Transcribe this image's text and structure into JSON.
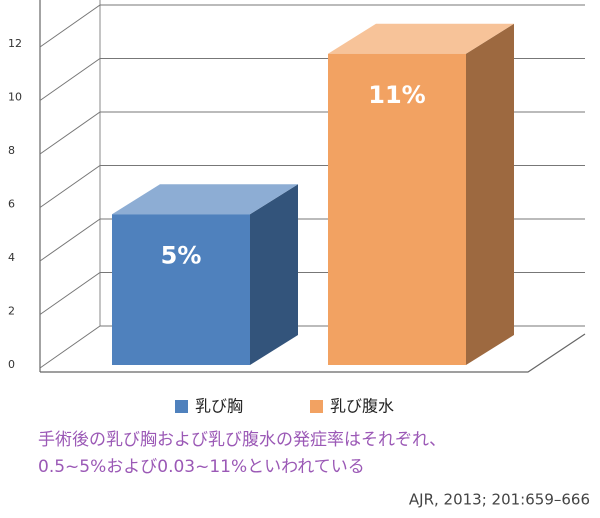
{
  "chart_data": {
    "type": "bar3d",
    "categories": [
      "乳び胸",
      "乳び腹水"
    ],
    "values": [
      5,
      11
    ],
    "value_labels": [
      "5%",
      "11%"
    ],
    "colors": [
      "#4f81bd",
      "#f2a262"
    ],
    "ylim": [
      0,
      12
    ],
    "yticks": [
      0,
      2,
      4,
      6,
      8,
      10,
      12
    ],
    "grid": true,
    "caption": [
      "手術後の乳び胸および乳び腹水の発症率はそれぞれ、",
      "0.5~5%および0.03~11%といわれている"
    ],
    "source": "AJR, 2013; 201:659–666"
  }
}
